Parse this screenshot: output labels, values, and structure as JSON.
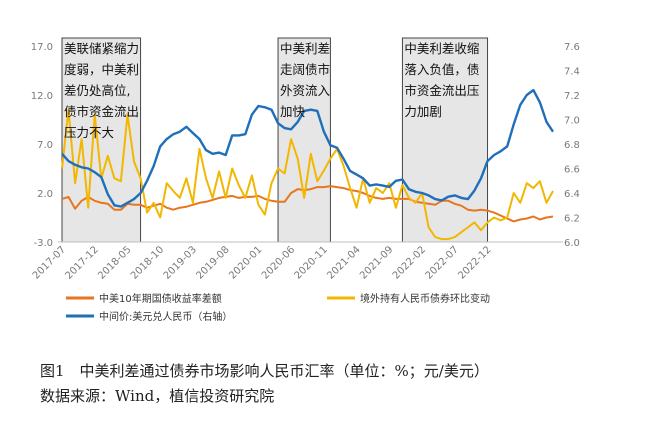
{
  "chart_data": {
    "type": "line",
    "title": "",
    "x_tick_labels": [
      "2017-07",
      "2017-12",
      "2018-05",
      "2018-10",
      "2019-03",
      "2019-08",
      "2020-01",
      "2020-06",
      "2020-11",
      "2021-04",
      "2021-09",
      "2022-02",
      "2022-07",
      "2022-12"
    ],
    "x_range": [
      "2017-07",
      "2022-12"
    ],
    "left_axis": {
      "ticks": [
        "17.0",
        "12.0",
        "7.0",
        "2.0",
        "-3.0"
      ],
      "ylim": [
        -3,
        17
      ]
    },
    "right_axis": {
      "ticks": [
        "7.6",
        "7.4",
        "7.2",
        "7.0",
        "6.8",
        "6.6",
        "6.4",
        "6.2",
        "6.0"
      ],
      "ylim": [
        6.0,
        7.6
      ]
    },
    "grid": false,
    "legend_position": "bottom",
    "shaded_periods": [
      {
        "start": "2017-07",
        "end": "2018-07",
        "lines": [
          "美联储紧缩力",
          "度弱，中美利",
          "差仍处高位,",
          "债市资金流出",
          "压力不大"
        ]
      },
      {
        "start": "2020-04",
        "end": "2020-12",
        "lines": [
          "中美利差",
          "走阔债市",
          "外资流入",
          "加快"
        ]
      },
      {
        "start": "2021-11",
        "end": "2022-12",
        "lines": [
          "中美利差收缩",
          "落入负值，债",
          "市资金流出压",
          "力加剧"
        ]
      }
    ],
    "series": [
      {
        "name": "中美10年期国债收益率差额",
        "axis": "left",
        "color": "#e8761f",
        "values": [
          1.4,
          1.6,
          0.4,
          1.2,
          1.6,
          1.2,
          1.0,
          0.9,
          0.3,
          0.3,
          0.9,
          0.8,
          0.8,
          0.5,
          0.7,
          0.9,
          0.5,
          0.3,
          0.5,
          0.6,
          0.8,
          1.0,
          1.1,
          1.3,
          1.5,
          1.6,
          1.7,
          1.5,
          1.6,
          1.6,
          1.7,
          1.4,
          1.2,
          1.1,
          1.1,
          2.0,
          2.4,
          2.3,
          2.4,
          2.6,
          2.6,
          2.7,
          2.6,
          2.5,
          2.3,
          2.2,
          2.0,
          1.7,
          1.5,
          1.4,
          1.5,
          1.4,
          1.4,
          1.4,
          1.1,
          1.0,
          0.9,
          0.8,
          1.2,
          1.2,
          0.9,
          0.7,
          0.3,
          0.2,
          0.3,
          0.2,
          0.0,
          -0.3,
          -0.6,
          -0.9,
          -0.7,
          -0.6,
          -0.4,
          -0.7,
          -0.5,
          -0.4
        ]
      },
      {
        "name": "境外持有人民币债券环比变动",
        "axis": "left",
        "color": "#f2b700",
        "values": [
          4.5,
          10.5,
          3.0,
          7.5,
          0.5,
          10.0,
          3.5,
          5.8,
          3.5,
          3.2,
          10.0,
          5.2,
          3.5,
          0.0,
          1.0,
          -0.5,
          3.0,
          2.2,
          1.5,
          3.5,
          1.0,
          6.5,
          3.5,
          1.5,
          4.2,
          1.5,
          4.5,
          2.8,
          1.5,
          3.8,
          0.8,
          -0.2,
          3.0,
          4.5,
          4.0,
          7.5,
          5.5,
          1.5,
          6.0,
          3.2,
          4.3,
          5.5,
          6.5,
          4.8,
          2.5,
          0.5,
          3.5,
          1.0,
          2.5,
          2.0,
          3.0,
          0.5,
          2.8,
          1.5,
          1.0,
          2.0,
          -1.5,
          -2.5,
          -2.7,
          -2.7,
          -2.5,
          -2.0,
          -1.5,
          -1.0,
          -1.8,
          -1.0,
          -0.5,
          -0.8,
          -0.5,
          2.0,
          1.0,
          3.0,
          2.5,
          3.2,
          1.0,
          2.2
        ]
      },
      {
        "name": "中间价:美元兑人民币（右轴）",
        "axis": "right",
        "color": "#1f6fba",
        "values": [
          6.72,
          6.66,
          6.63,
          6.61,
          6.6,
          6.57,
          6.53,
          6.39,
          6.3,
          6.29,
          6.32,
          6.35,
          6.4,
          6.5,
          6.62,
          6.78,
          6.84,
          6.88,
          6.9,
          6.94,
          6.89,
          6.84,
          6.75,
          6.72,
          6.73,
          6.71,
          6.87,
          6.87,
          6.88,
          7.04,
          7.11,
          7.1,
          7.08,
          6.97,
          6.93,
          6.92,
          6.98,
          7.07,
          7.08,
          7.07,
          6.9,
          6.79,
          6.77,
          6.68,
          6.58,
          6.55,
          6.52,
          6.46,
          6.47,
          6.46,
          6.45,
          6.5,
          6.51,
          6.43,
          6.41,
          6.4,
          6.38,
          6.35,
          6.34,
          6.37,
          6.38,
          6.36,
          6.35,
          6.42,
          6.52,
          6.66,
          6.71,
          6.74,
          6.78,
          6.96,
          7.12,
          7.2,
          7.24,
          7.14,
          6.98,
          6.9
        ]
      }
    ]
  },
  "legend": [
    {
      "label": "中美10年期国债收益率差额",
      "color": "#e8761f"
    },
    {
      "label": "境外持有人民币债券环比变动",
      "color": "#f2b700"
    },
    {
      "label": "中间价:美元兑人民币（右轴）",
      "color": "#1f6fba"
    }
  ],
  "caption": {
    "line1": "图1　中美利差通过债券市场影响人民币汇率（单位：%；元/美元）",
    "line2": "数据来源：Wind，植信投资研究院"
  }
}
